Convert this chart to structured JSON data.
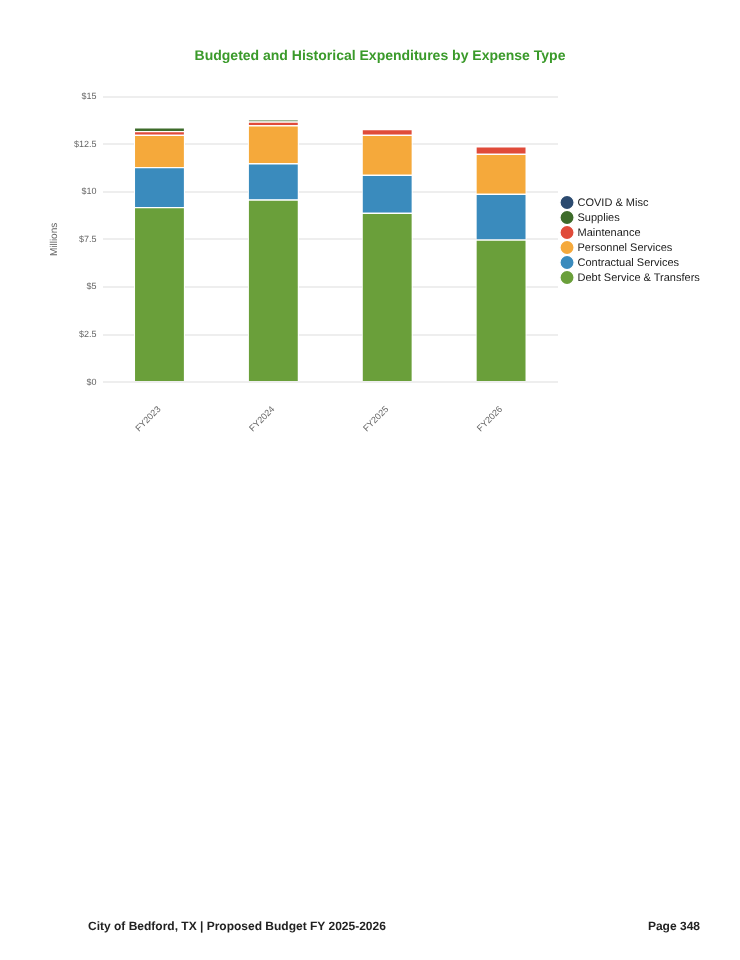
{
  "chart_data": {
    "type": "bar",
    "title": "Budgeted and Historical Expenditures by Expense Type",
    "ylabel": "Millions",
    "categories": [
      "FY2023",
      "FY2024",
      "FY2025",
      "FY2026"
    ],
    "series": [
      {
        "name": "Debt Service & Transfers",
        "color": "#6a9f3a",
        "values": [
          9.2,
          9.6,
          8.9,
          7.5
        ]
      },
      {
        "name": "Contractual Services",
        "color": "#3a8bbd",
        "values": [
          2.1,
          1.9,
          2,
          2.4
        ]
      },
      {
        "name": "Personnel Services",
        "color": "#f5a93b",
        "values": [
          1.7,
          2,
          2.1,
          2.1
        ]
      },
      {
        "name": "Maintenance",
        "color": "#e04b3a",
        "values": [
          0.2,
          0.2,
          0.3,
          0.4
        ]
      },
      {
        "name": "Supplies",
        "color": "#3d6b2a",
        "values": [
          0.2,
          0.1,
          0,
          0
        ]
      },
      {
        "name": "COVID & Misc",
        "color": "#2b4a6f",
        "values": [
          0,
          0,
          0,
          0
        ]
      }
    ],
    "stacked": true,
    "ylim": [
      0,
      15
    ],
    "yticks": [
      {
        "value": 0,
        "label": "$0"
      },
      {
        "value": 2.5,
        "label": "$2.5"
      },
      {
        "value": 5,
        "label": "$5"
      },
      {
        "value": 7.5,
        "label": "$7.5"
      },
      {
        "value": 10,
        "label": "$10"
      },
      {
        "value": 12.5,
        "label": "$12.5"
      },
      {
        "value": 15,
        "label": "$15"
      }
    ],
    "grid": "y",
    "legend": "right",
    "annotations": [
      "City of Bedford, TX | Proposed Budget FY 2025-2026",
      "Page 348"
    ]
  }
}
